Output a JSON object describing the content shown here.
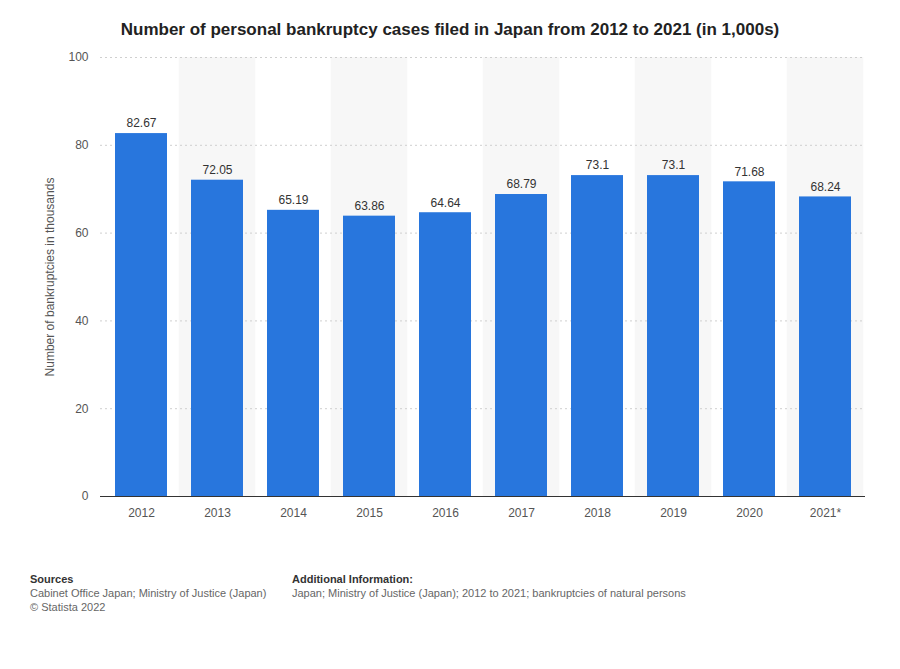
{
  "chart_data": {
    "type": "bar",
    "title": "Number of personal bankruptcy cases filed in Japan from 2012 to 2021 (in 1,000s)",
    "y_label": "Number of bankruptcies in thousands",
    "categories": [
      "2012",
      "2013",
      "2014",
      "2015",
      "2016",
      "2017",
      "2018",
      "2019",
      "2020",
      "2021*"
    ],
    "values": [
      82.67,
      72.05,
      65.19,
      63.86,
      64.64,
      68.79,
      73.1,
      73.1,
      71.68,
      68.24
    ],
    "color": "#2876dd",
    "ylim": [
      0,
      100
    ],
    "yticks": [
      0,
      20,
      40,
      60,
      80,
      100
    ],
    "grid": true,
    "data_labels": true,
    "footer": {
      "sources_heading": "Sources",
      "sources": [
        "Cabinet Office Japan; Ministry of Justice (Japan)",
        "© Statista 2022"
      ],
      "additional_heading": "Additional Information:",
      "additional": [
        "Japan; Ministry of Justice (Japan); 2012 to 2021; bankruptcies of natural persons"
      ]
    }
  }
}
